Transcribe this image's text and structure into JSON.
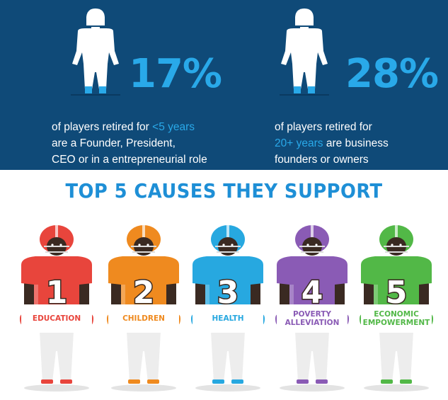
{
  "stats": [
    {
      "value": "17%",
      "line1_pre": "of players retired for ",
      "line1_highlight": "<5 years",
      "line2": "are a Founder, President,",
      "line3": "CEO or in a entrepreneurial role"
    },
    {
      "value": "28%",
      "line1_pre": "of players retired for",
      "line2_highlight": "20+ years",
      "line2_post": " are business",
      "line3": "founders or owners"
    }
  ],
  "title": "TOP 5 CAUSES THEY SUPPORT",
  "causes": [
    {
      "number": "1",
      "label": "EDUCATION",
      "color": "#e8453c"
    },
    {
      "number": "2",
      "label": "CHILDREN",
      "color": "#ef8a1f"
    },
    {
      "number": "3",
      "label": "HEALTH",
      "color": "#27a8e0"
    },
    {
      "number": "4",
      "label": "POVERTY ALLEVIATION",
      "color": "#8a5bb5"
    },
    {
      "number": "5",
      "label": "ECONOMIC EMPOWERMENT",
      "color": "#52b847"
    }
  ],
  "colors": {
    "navy": "#0f4a78",
    "accent": "#29a9e9",
    "title": "#1e8fd6"
  }
}
